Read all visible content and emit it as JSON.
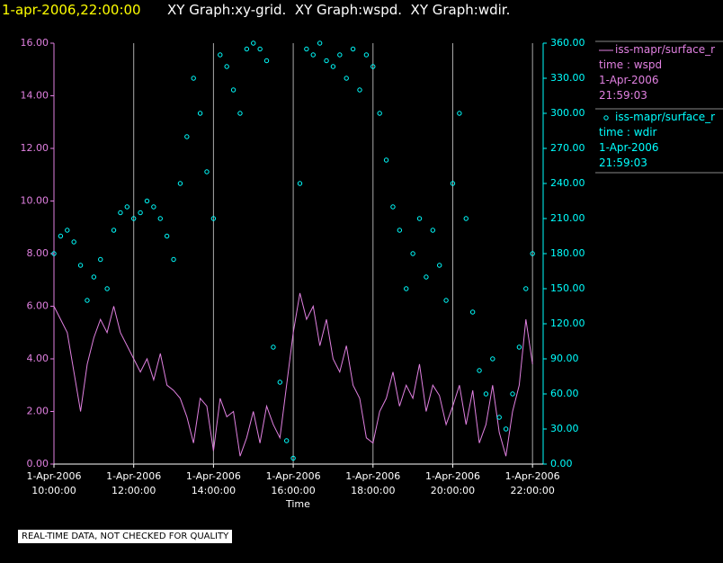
{
  "chart_data": {
    "type": "line",
    "title": "1-apr-2006,22:00:00",
    "subtitle": "XY Graph:xy-grid.  XY Graph:wspd.  XY Graph:wdir.",
    "xlabel": "Time",
    "note": "REAL-TIME DATA, NOT CHECKED FOR QUALITY",
    "grid": true,
    "xlim": [
      "2006-04-01T10:00:00",
      "2006-04-01T22:16:00"
    ],
    "xticks": [
      {
        "value": "2006-04-01T10:00:00",
        "label": "1-Apr-2006\n10:00:00"
      },
      {
        "value": "2006-04-01T12:00:00",
        "label": "1-Apr-2006\n12:00:00"
      },
      {
        "value": "2006-04-01T14:00:00",
        "label": "1-Apr-2006\n14:00:00"
      },
      {
        "value": "2006-04-01T16:00:00",
        "label": "1-Apr-2006\n16:00:00"
      },
      {
        "value": "2006-04-01T18:00:00",
        "label": "1-Apr-2006\n18:00:00"
      },
      {
        "value": "2006-04-01T20:00:00",
        "label": "1-Apr-2006\n20:00:00"
      },
      {
        "value": "2006-04-01T22:00:00",
        "label": "1-Apr-2006\n22:00:00"
      }
    ],
    "ylim": [
      0,
      16
    ],
    "yticks": [
      {
        "value": 0,
        "label": "0.00"
      },
      {
        "value": 2,
        "label": "2.00"
      },
      {
        "value": 4,
        "label": "4.00"
      },
      {
        "value": 6,
        "label": "6.00"
      },
      {
        "value": 8,
        "label": "8.00"
      },
      {
        "value": 10,
        "label": "10.00"
      },
      {
        "value": 12,
        "label": "12.00"
      },
      {
        "value": 14,
        "label": "14.00"
      },
      {
        "value": 16,
        "label": "16.00"
      }
    ],
    "y2lim": [
      0,
      360
    ],
    "y2ticks": [
      {
        "value": 0,
        "label": "0.00"
      },
      {
        "value": 30,
        "label": "30.00"
      },
      {
        "value": 60,
        "label": "60.00"
      },
      {
        "value": 90,
        "label": "90.00"
      },
      {
        "value": 120,
        "label": "120.00"
      },
      {
        "value": 150,
        "label": "150.00"
      },
      {
        "value": 180,
        "label": "180.00"
      },
      {
        "value": 210,
        "label": "210.00"
      },
      {
        "value": 240,
        "label": "240.00"
      },
      {
        "value": 270,
        "label": "270.00"
      },
      {
        "value": 300,
        "label": "300.00"
      },
      {
        "value": 330,
        "label": "330.00"
      },
      {
        "value": 360,
        "label": "360.00"
      }
    ],
    "x": [
      "2006-04-01T10:00:00",
      "2006-04-01T10:10:00",
      "2006-04-01T10:20:00",
      "2006-04-01T10:30:00",
      "2006-04-01T10:40:00",
      "2006-04-01T10:50:00",
      "2006-04-01T11:00:00",
      "2006-04-01T11:10:00",
      "2006-04-01T11:20:00",
      "2006-04-01T11:30:00",
      "2006-04-01T11:40:00",
      "2006-04-01T11:50:00",
      "2006-04-01T12:00:00",
      "2006-04-01T12:10:00",
      "2006-04-01T12:20:00",
      "2006-04-01T12:30:00",
      "2006-04-01T12:40:00",
      "2006-04-01T12:50:00",
      "2006-04-01T13:00:00",
      "2006-04-01T13:10:00",
      "2006-04-01T13:20:00",
      "2006-04-01T13:30:00",
      "2006-04-01T13:40:00",
      "2006-04-01T13:50:00",
      "2006-04-01T14:00:00",
      "2006-04-01T14:10:00",
      "2006-04-01T14:20:00",
      "2006-04-01T14:30:00",
      "2006-04-01T14:40:00",
      "2006-04-01T14:50:00",
      "2006-04-01T15:00:00",
      "2006-04-01T15:10:00",
      "2006-04-01T15:20:00",
      "2006-04-01T15:30:00",
      "2006-04-01T15:40:00",
      "2006-04-01T15:50:00",
      "2006-04-01T16:00:00",
      "2006-04-01T16:10:00",
      "2006-04-01T16:20:00",
      "2006-04-01T16:30:00",
      "2006-04-01T16:40:00",
      "2006-04-01T16:50:00",
      "2006-04-01T17:00:00",
      "2006-04-01T17:10:00",
      "2006-04-01T17:20:00",
      "2006-04-01T17:30:00",
      "2006-04-01T17:40:00",
      "2006-04-01T17:50:00",
      "2006-04-01T18:00:00",
      "2006-04-01T18:10:00",
      "2006-04-01T18:20:00",
      "2006-04-01T18:30:00",
      "2006-04-01T18:40:00",
      "2006-04-01T18:50:00",
      "2006-04-01T19:00:00",
      "2006-04-01T19:10:00",
      "2006-04-01T19:20:00",
      "2006-04-01T19:30:00",
      "2006-04-01T19:40:00",
      "2006-04-01T19:50:00",
      "2006-04-01T20:00:00",
      "2006-04-01T20:10:00",
      "2006-04-01T20:20:00",
      "2006-04-01T20:30:00",
      "2006-04-01T20:40:00",
      "2006-04-01T20:50:00",
      "2006-04-01T21:00:00",
      "2006-04-01T21:10:00",
      "2006-04-01T21:20:00",
      "2006-04-01T21:30:00",
      "2006-04-01T21:40:00",
      "2006-04-01T21:50:00",
      "2006-04-01T22:00:00"
    ],
    "series": [
      {
        "name": "iss-mapr/surface_r",
        "legend": [
          "time : wspd",
          "1-Apr-2006",
          "21:59:03"
        ],
        "color": "#e080e0",
        "kind": "line",
        "values": [
          6.0,
          5.5,
          5.0,
          3.5,
          2.0,
          3.8,
          4.8,
          5.5,
          5.0,
          6.0,
          5.0,
          4.5,
          4.0,
          3.5,
          4.0,
          3.2,
          4.2,
          3.0,
          2.8,
          2.5,
          1.8,
          0.8,
          2.5,
          2.2,
          0.5,
          2.5,
          1.8,
          2.0,
          0.3,
          1.0,
          2.0,
          0.8,
          2.2,
          1.5,
          1.0,
          3.0,
          5.0,
          6.5,
          5.5,
          6.0,
          4.5,
          5.5,
          4.0,
          3.5,
          4.5,
          3.0,
          2.5,
          1.0,
          0.8,
          2.0,
          2.5,
          3.5,
          2.2,
          3.0,
          2.5,
          3.8,
          2.0,
          3.0,
          2.6,
          1.5,
          2.2,
          3.0,
          1.5,
          2.8,
          0.8,
          1.5,
          3.0,
          1.2,
          0.3,
          2.0,
          3.0,
          5.5,
          3.8
        ]
      },
      {
        "name": "iss-mapr/surface_r",
        "legend": [
          "time : wdir",
          "1-Apr-2006",
          "21:59:03"
        ],
        "color": "#00ffff",
        "kind": "scatter",
        "axis": "y2",
        "values": [
          180,
          195,
          200,
          190,
          170,
          140,
          160,
          175,
          150,
          200,
          215,
          220,
          210,
          215,
          225,
          220,
          210,
          195,
          175,
          240,
          280,
          330,
          300,
          250,
          210,
          350,
          340,
          320,
          300,
          355,
          360,
          355,
          345,
          100,
          70,
          20,
          5,
          240,
          355,
          350,
          360,
          345,
          340,
          350,
          330,
          355,
          320,
          350,
          340,
          300,
          260,
          220,
          200,
          150,
          180,
          210,
          160,
          200,
          170,
          140,
          240,
          300,
          210,
          130,
          80,
          60,
          90,
          40,
          30,
          60,
          100,
          150,
          180
        ]
      }
    ]
  }
}
